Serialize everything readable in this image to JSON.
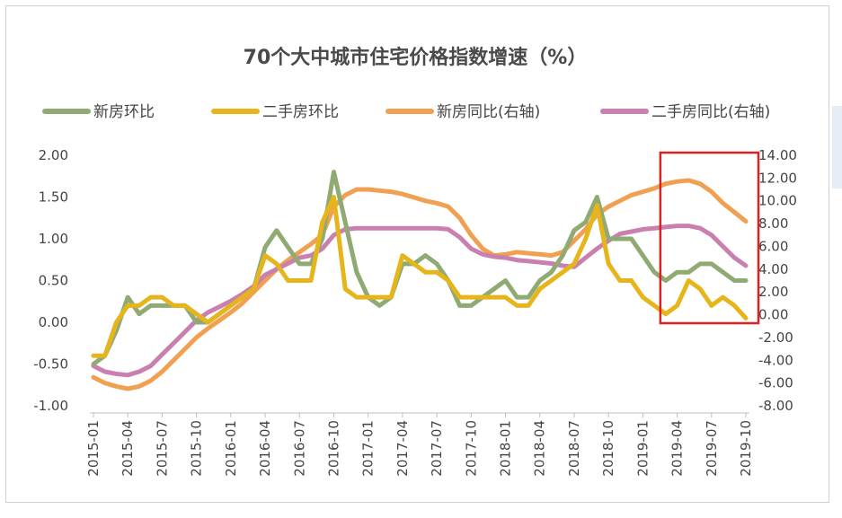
{
  "chart_data": {
    "type": "line",
    "title": "70个大中城市住宅价格指数增速（%）",
    "x": [
      "2015-01",
      "2015-02",
      "2015-03",
      "2015-04",
      "2015-05",
      "2015-06",
      "2015-07",
      "2015-08",
      "2015-09",
      "2015-10",
      "2015-11",
      "2015-12",
      "2016-01",
      "2016-02",
      "2016-03",
      "2016-04",
      "2016-05",
      "2016-06",
      "2016-07",
      "2016-08",
      "2016-09",
      "2016-10",
      "2016-11",
      "2016-12",
      "2017-01",
      "2017-02",
      "2017-03",
      "2017-04",
      "2017-05",
      "2017-06",
      "2017-07",
      "2017-08",
      "2017-09",
      "2017-10",
      "2017-11",
      "2017-12",
      "2018-01",
      "2018-02",
      "2018-03",
      "2018-04",
      "2018-05",
      "2018-06",
      "2018-07",
      "2018-08",
      "2018-09",
      "2018-10",
      "2018-11",
      "2018-12",
      "2019-01",
      "2019-02",
      "2019-03",
      "2019-04",
      "2019-05",
      "2019-06",
      "2019-07",
      "2019-08",
      "2019-09",
      "2019-10"
    ],
    "xticks": [
      "2015-01",
      "2015-04",
      "2015-07",
      "2015-10",
      "2016-01",
      "2016-04",
      "2016-07",
      "2016-10",
      "2017-01",
      "2017-04",
      "2017-07",
      "2017-10",
      "2018-01",
      "2018-04",
      "2018-07",
      "2018-10",
      "2019-01",
      "2019-04",
      "2019-07",
      "2019-10"
    ],
    "ylim_left": [
      -1.0,
      2.0
    ],
    "yticks_left": [
      "2.00",
      "1.50",
      "1.00",
      "0.50",
      "0.00",
      "-0.50",
      "-1.00"
    ],
    "ylim_right": [
      -8.0,
      14.0
    ],
    "yticks_right": [
      "14.00",
      "12.00",
      "10.00",
      "8.00",
      "6.00",
      "4.00",
      "2.00",
      "0.00",
      "-2.00",
      "-4.00",
      "-6.00",
      "-8.00"
    ],
    "legend_position": "top",
    "series": [
      {
        "name": "新房环比",
        "axis": "left",
        "color": "#8faa73",
        "values": [
          -0.5,
          -0.4,
          -0.1,
          0.3,
          0.1,
          0.2,
          0.2,
          0.2,
          0.2,
          0.0,
          0.0,
          0.1,
          0.2,
          0.3,
          0.4,
          0.9,
          1.1,
          0.9,
          0.7,
          0.7,
          1.0,
          1.8,
          1.2,
          0.6,
          0.3,
          0.2,
          0.3,
          0.7,
          0.7,
          0.8,
          0.7,
          0.5,
          0.2,
          0.2,
          0.3,
          0.4,
          0.5,
          0.3,
          0.3,
          0.5,
          0.6,
          0.8,
          1.1,
          1.2,
          1.5,
          1.0,
          1.0,
          1.0,
          0.8,
          0.6,
          0.5,
          0.6,
          0.6,
          0.7,
          0.7,
          0.6,
          0.5,
          0.5
        ]
      },
      {
        "name": "二手房环比",
        "axis": "left",
        "color": "#e6b51b",
        "values": [
          -0.4,
          -0.4,
          0.0,
          0.2,
          0.2,
          0.3,
          0.3,
          0.2,
          0.2,
          0.1,
          0.0,
          0.1,
          0.2,
          0.3,
          0.4,
          0.8,
          0.7,
          0.5,
          0.5,
          0.5,
          1.2,
          1.5,
          0.4,
          0.3,
          0.3,
          0.3,
          0.3,
          0.8,
          0.7,
          0.6,
          0.6,
          0.5,
          0.3,
          0.3,
          0.3,
          0.3,
          0.3,
          0.2,
          0.2,
          0.4,
          0.5,
          0.6,
          0.7,
          1.0,
          1.4,
          0.7,
          0.5,
          0.5,
          0.3,
          0.2,
          0.1,
          0.2,
          0.5,
          0.4,
          0.2,
          0.3,
          0.2,
          0.05
        ]
      },
      {
        "name": "新房同比(右轴)",
        "axis": "right",
        "color": "#f0a050",
        "values": [
          -5.5,
          -6.0,
          -6.3,
          -6.5,
          -6.3,
          -5.8,
          -5.0,
          -4.0,
          -3.0,
          -2.0,
          -1.2,
          -0.5,
          0.2,
          1.0,
          2.0,
          3.0,
          4.0,
          4.8,
          5.5,
          6.2,
          7.0,
          9.5,
          10.5,
          11.0,
          11.0,
          10.9,
          10.8,
          10.6,
          10.3,
          10.0,
          9.8,
          9.5,
          8.5,
          7.0,
          5.8,
          5.2,
          5.3,
          5.5,
          5.4,
          5.3,
          5.2,
          5.5,
          6.5,
          7.5,
          8.8,
          9.5,
          10.0,
          10.5,
          10.8,
          11.1,
          11.5,
          11.7,
          11.8,
          11.5,
          10.8,
          9.8,
          9.0,
          8.2
        ]
      },
      {
        "name": "二手房同比(右轴)",
        "axis": "right",
        "color": "#c980b0",
        "values": [
          -4.5,
          -5.0,
          -5.2,
          -5.3,
          -5.0,
          -4.5,
          -3.5,
          -2.5,
          -1.5,
          -0.5,
          0.2,
          0.7,
          1.2,
          1.8,
          2.5,
          3.5,
          4.0,
          4.5,
          5.0,
          5.2,
          5.8,
          7.0,
          7.5,
          7.6,
          7.6,
          7.6,
          7.6,
          7.6,
          7.6,
          7.6,
          7.6,
          7.5,
          6.8,
          5.8,
          5.3,
          5.1,
          5.0,
          4.8,
          4.7,
          4.6,
          4.5,
          4.3,
          4.2,
          5.0,
          5.8,
          6.5,
          7.1,
          7.3,
          7.5,
          7.6,
          7.7,
          7.8,
          7.8,
          7.6,
          7.0,
          6.0,
          5.0,
          4.3
        ]
      }
    ],
    "highlight": {
      "from": "2019-03",
      "to": "2019-10",
      "color": "#e02020"
    }
  }
}
